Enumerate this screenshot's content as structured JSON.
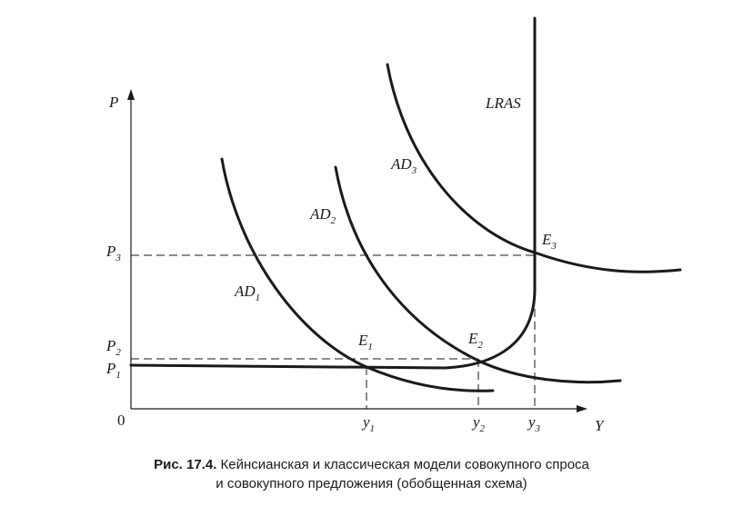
{
  "axes": {
    "y_label": "P",
    "x_label": "Y",
    "origin_label": "0"
  },
  "curves": {
    "lras": "LRAS",
    "ad1": {
      "base": "AD",
      "sub": "1"
    },
    "ad2": {
      "base": "AD",
      "sub": "2"
    },
    "ad3": {
      "base": "AD",
      "sub": "3"
    }
  },
  "equilibria": {
    "e1": {
      "base": "E",
      "sub": "1"
    },
    "e2": {
      "base": "E",
      "sub": "2"
    },
    "e3": {
      "base": "E",
      "sub": "3"
    }
  },
  "price_levels": {
    "p1": {
      "base": "P",
      "sub": "1"
    },
    "p2": {
      "base": "P",
      "sub": "2"
    },
    "p3": {
      "base": "P",
      "sub": "3"
    }
  },
  "output_levels": {
    "y1": {
      "base": "y",
      "sub": "1"
    },
    "y2": {
      "base": "y",
      "sub": "2"
    },
    "y3": {
      "base": "y",
      "sub": "3"
    }
  },
  "caption": {
    "label": "Рис. 17.4.",
    "text_line1": "Кейнсианская и классическая модели совокупного спроса",
    "text_line2": "и совокупного предложения (обобщенная схема)"
  }
}
